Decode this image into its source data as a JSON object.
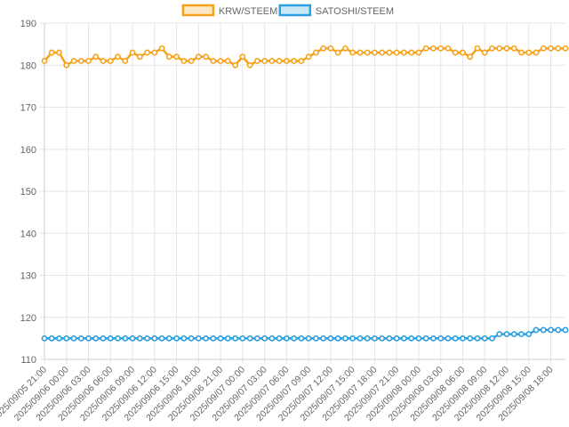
{
  "chart_data": {
    "type": "line",
    "ylim": [
      110,
      190
    ],
    "yticks": [
      110,
      120,
      130,
      140,
      150,
      160,
      170,
      180,
      190
    ],
    "grid": true,
    "legend_position": "top-center",
    "x": [
      "2025/09/05 21:00",
      "2025/09/05 22:00",
      "2025/09/05 23:00",
      "2025/09/06 00:00",
      "2025/09/06 01:00",
      "2025/09/06 02:00",
      "2025/09/06 03:00",
      "2025/09/06 04:00",
      "2025/09/06 05:00",
      "2025/09/06 06:00",
      "2025/09/06 07:00",
      "2025/09/06 08:00",
      "2025/09/06 09:00",
      "2025/09/06 10:00",
      "2025/09/06 11:00",
      "2025/09/06 12:00",
      "2025/09/06 13:00",
      "2025/09/06 14:00",
      "2025/09/06 15:00",
      "2025/09/06 16:00",
      "2025/09/06 17:00",
      "2025/09/06 18:00",
      "2025/09/06 19:00",
      "2025/09/06 20:00",
      "2025/09/06 21:00",
      "2025/09/06 22:00",
      "2025/09/06 23:00",
      "2025/09/07 00:00",
      "2025/09/07 01:00",
      "2025/09/07 02:00",
      "2025/09/07 03:00",
      "2025/09/07 04:00",
      "2025/09/07 05:00",
      "2025/09/07 06:00",
      "2025/09/07 07:00",
      "2025/09/07 08:00",
      "2025/09/07 09:00",
      "2025/09/07 10:00",
      "2025/09/07 11:00",
      "2025/09/07 12:00",
      "2025/09/07 13:00",
      "2025/09/07 14:00",
      "2025/09/07 15:00",
      "2025/09/07 16:00",
      "2025/09/07 17:00",
      "2025/09/07 18:00",
      "2025/09/07 19:00",
      "2025/09/07 20:00",
      "2025/09/07 21:00",
      "2025/09/07 22:00",
      "2025/09/07 23:00",
      "2025/09/08 00:00",
      "2025/09/08 01:00",
      "2025/09/08 02:00",
      "2025/09/08 03:00",
      "2025/09/08 04:00",
      "2025/09/08 05:00",
      "2025/09/08 06:00",
      "2025/09/08 07:00",
      "2025/09/08 08:00",
      "2025/09/08 09:00",
      "2025/09/08 10:00",
      "2025/09/08 11:00",
      "2025/09/08 12:00",
      "2025/09/08 13:00",
      "2025/09/08 14:00",
      "2025/09/08 15:00",
      "2025/09/08 16:00",
      "2025/09/08 17:00",
      "2025/09/08 18:00",
      "2025/09/08 19:00",
      "2025/09/08 20:00"
    ],
    "x_tick_labels": [
      "2025/09/05 21:00",
      "2025/09/06 00:00",
      "2025/09/06 03:00",
      "2025/09/06 06:00",
      "2025/09/06 09:00",
      "2025/09/06 12:00",
      "2025/09/06 15:00",
      "2025/09/06 18:00",
      "2025/09/06 21:00",
      "2025/09/07 00:00",
      "2025/09/07 03:00",
      "2025/09/07 06:00",
      "2025/09/07 09:00",
      "2025/09/07 12:00",
      "2025/09/07 15:00",
      "2025/09/07 18:00",
      "2025/09/07 21:00",
      "2025/09/08 00:00",
      "2025/09/08 03:00",
      "2025/09/08 06:00",
      "2025/09/08 09:00",
      "2025/09/08 12:00",
      "2025/09/08 15:00",
      "2025/09/08 18:00"
    ],
    "series": [
      {
        "name": "KRW/STEEM",
        "color": "#f5a21b",
        "values": [
          181,
          183,
          183,
          180,
          181,
          181,
          181,
          182,
          181,
          181,
          182,
          181,
          183,
          182,
          183,
          183,
          184,
          182,
          182,
          181,
          181,
          182,
          182,
          181,
          181,
          181,
          180,
          182,
          180,
          181,
          181,
          181,
          181,
          181,
          181,
          181,
          182,
          183,
          184,
          184,
          183,
          184,
          183,
          183,
          183,
          183,
          183,
          183,
          183,
          183,
          183,
          183,
          184,
          184,
          184,
          184,
          183,
          183,
          182,
          184,
          183,
          184,
          184,
          184,
          184,
          183,
          183,
          183,
          184,
          184,
          184,
          184
        ]
      },
      {
        "name": "SATOSHI/STEEM",
        "color": "#2b9fe0",
        "values": [
          115,
          115,
          115,
          115,
          115,
          115,
          115,
          115,
          115,
          115,
          115,
          115,
          115,
          115,
          115,
          115,
          115,
          115,
          115,
          115,
          115,
          115,
          115,
          115,
          115,
          115,
          115,
          115,
          115,
          115,
          115,
          115,
          115,
          115,
          115,
          115,
          115,
          115,
          115,
          115,
          115,
          115,
          115,
          115,
          115,
          115,
          115,
          115,
          115,
          115,
          115,
          115,
          115,
          115,
          115,
          115,
          115,
          115,
          115,
          115,
          115,
          115,
          116,
          116,
          116,
          116,
          116,
          117,
          117,
          117,
          117,
          117
        ]
      }
    ]
  }
}
